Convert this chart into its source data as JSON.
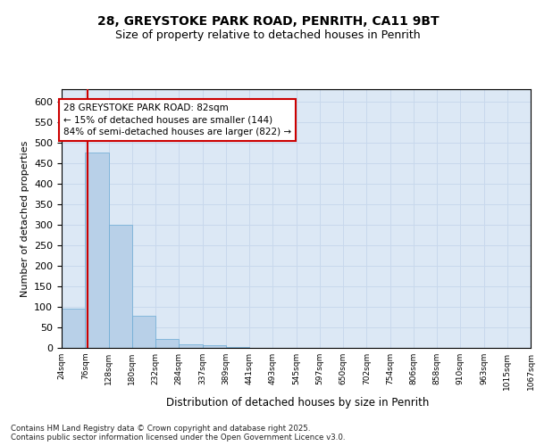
{
  "title1": "28, GREYSTOKE PARK ROAD, PENRITH, CA11 9BT",
  "title2": "Size of property relative to detached houses in Penrith",
  "xlabel": "Distribution of detached houses by size in Penrith",
  "ylabel": "Number of detached properties",
  "bar_values": [
    95,
    475,
    300,
    78,
    22,
    8,
    7,
    2,
    0,
    0,
    0,
    0,
    0,
    0,
    0,
    0,
    0,
    0,
    0,
    0
  ],
  "bin_labels": [
    "24sqm",
    "76sqm",
    "128sqm",
    "180sqm",
    "232sqm",
    "284sqm",
    "337sqm",
    "389sqm",
    "441sqm",
    "493sqm",
    "545sqm",
    "597sqm",
    "650sqm",
    "702sqm",
    "754sqm",
    "806sqm",
    "858sqm",
    "910sqm",
    "963sqm",
    "1015sqm",
    "1067sqm"
  ],
  "bar_color": "#b8d0e8",
  "bar_edge_color": "#6aaad4",
  "grid_color": "#c8d8ec",
  "background_color": "#dce8f5",
  "vline_color": "#cc0000",
  "vline_x": 1.12,
  "annotation_text": "28 GREYSTOKE PARK ROAD: 82sqm\n← 15% of detached houses are smaller (144)\n84% of semi-detached houses are larger (822) →",
  "annotation_box_color": "#ffffff",
  "annotation_box_edge": "#cc0000",
  "ylim": [
    0,
    630
  ],
  "yticks": [
    0,
    50,
    100,
    150,
    200,
    250,
    300,
    350,
    400,
    450,
    500,
    550,
    600
  ],
  "footer": "Contains HM Land Registry data © Crown copyright and database right 2025.\nContains public sector information licensed under the Open Government Licence v3.0.",
  "title_fontsize": 10,
  "subtitle_fontsize": 9
}
